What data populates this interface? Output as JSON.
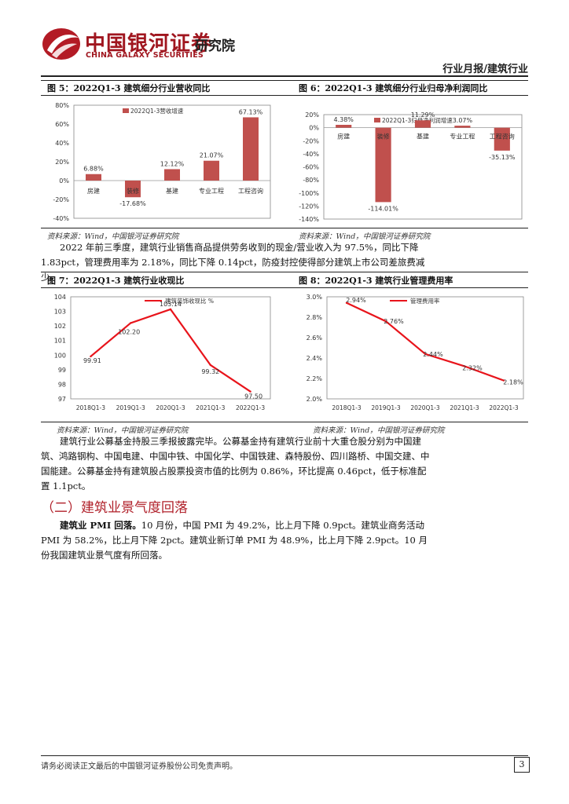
{
  "header": {
    "brand_cn": "中国银河证券",
    "brand_en": "CHINA GALAXY SECURITIES",
    "institute": "研究院",
    "report_type": "行业月报/建筑行业"
  },
  "fig5": {
    "title": "图 5：2022Q1-3 建筑细分行业营收同比",
    "source": "资料来源：Wind，中国银河证券研究院",
    "chart_data": {
      "type": "bar",
      "categories": [
        "房建",
        "装修",
        "基建",
        "专业工程",
        "工程咨询"
      ],
      "series": [
        {
          "name": "2022Q1-3营收增速",
          "values": [
            6.88,
            -17.68,
            12.12,
            21.07,
            67.13
          ]
        }
      ],
      "value_labels": [
        "6.88%",
        "-17.68%",
        "12.12%",
        "21.07%",
        "67.13%"
      ],
      "ylim": [
        -40,
        80
      ],
      "yticks": [
        "80%",
        "60%",
        "40%",
        "20%",
        "0%",
        "-20%",
        "-40%"
      ],
      "grid": false,
      "legend": "top-left",
      "color": "#c0504d"
    }
  },
  "fig6": {
    "title": "图 6：2022Q1-3 建筑细分行业归母净利润同比",
    "source": "资料来源：Wind，中国银河证券研究院",
    "chart_data": {
      "type": "bar",
      "categories": [
        "房建",
        "装修",
        "基建",
        "专业工程",
        "工程咨询"
      ],
      "series": [
        {
          "name": "2022Q1-3归母净利润增速",
          "values": [
            4.38,
            -114.01,
            11.29,
            3.07,
            -35.13
          ]
        }
      ],
      "value_labels": [
        "4.38%",
        "-114.01%",
        "11.29%",
        "3.07%",
        "-35.13%"
      ],
      "ylim": [
        -140,
        20
      ],
      "yticks": [
        "20%",
        "0%",
        "-20%",
        "-40%",
        "-60%",
        "-80%",
        "-100%",
        "-120%",
        "-140%"
      ],
      "grid": false,
      "legend": "top-center",
      "color": "#c0504d"
    }
  },
  "para1": "2022 年前三季度，建筑行业销售商品提供劳务收到的现金/营业收入为 97.5%，同比下降 1.83pct，管理费用率为 2.18%，同比下降 0.14pct，防疫封控使得部分建筑上市公司差旅费减少。",
  "fig7": {
    "title": "图 7：2022Q1-3 建筑行业收现比",
    "source": "资料来源：Wind，中国银河证券研究院",
    "chart_data": {
      "type": "line",
      "categories": [
        "2018Q1-3",
        "2019Q1-3",
        "2020Q1-3",
        "2021Q1-3",
        "2022Q1-3"
      ],
      "series": [
        {
          "name": "建筑装饰收现比 %",
          "values": [
            99.91,
            102.2,
            103.14,
            99.32,
            97.5
          ]
        }
      ],
      "value_labels": [
        "99.91",
        "102.20",
        "103.14",
        "99.32",
        "97.50"
      ],
      "ylim": [
        97,
        104
      ],
      "yticks": [
        "104",
        "103",
        "102",
        "101",
        "100",
        "99",
        "98",
        "97"
      ],
      "grid": false,
      "legend": "top-center",
      "color": "#e8141b"
    }
  },
  "fig8": {
    "title": "图 8：2022Q1-3 建筑行业管理费用率",
    "source": "资料来源：Wind，中国银河证券研究院",
    "chart_data": {
      "type": "line",
      "categories": [
        "2018Q1-3",
        "2019Q1-3",
        "2020Q1-3",
        "2021Q1-3",
        "2022Q1-3"
      ],
      "series": [
        {
          "name": "管理费用率",
          "values": [
            2.94,
            2.76,
            2.44,
            2.32,
            2.18
          ]
        }
      ],
      "value_labels": [
        "2.94%",
        "2.76%",
        "2.44%",
        "2.32%",
        "2.18%"
      ],
      "ylim": [
        2.0,
        3.0
      ],
      "yticks": [
        "3.0%",
        "2.8%",
        "2.6%",
        "2.4%",
        "2.2%",
        "2.0%"
      ],
      "grid": false,
      "legend": "top-center",
      "color": "#e8141b"
    }
  },
  "para2": "建筑行业公募基金持股三季报披露完毕。公募基金持有建筑行业前十大重仓股分别为中国建筑、鸿路钢构、中国电建、中国中铁、中国化学、中国铁建、森特股份、四川路桥、中国交建、中国能建。公募基金持有建筑股占股票投资市值的比例为 0.86%，环比提高 0.46pct，低于标准配置 1.1pct。",
  "section_title": "（二）建筑业景气度回落",
  "para3_bold": "建筑业 PMI 回落。",
  "para3": "10 月份，中国 PMI 为 49.2%，比上月下降 0.9pct。建筑业商务活动 PMI 为 58.2%，比上月下降 2pct。建筑业新订单 PMI 为 48.9%，比上月下降 2.9pct。10 月份我国建筑业景气度有所回落。",
  "footer": {
    "disclaimer": "请务必阅读正文最后的中国银河证券股份公司免责声明。",
    "page": "3"
  }
}
